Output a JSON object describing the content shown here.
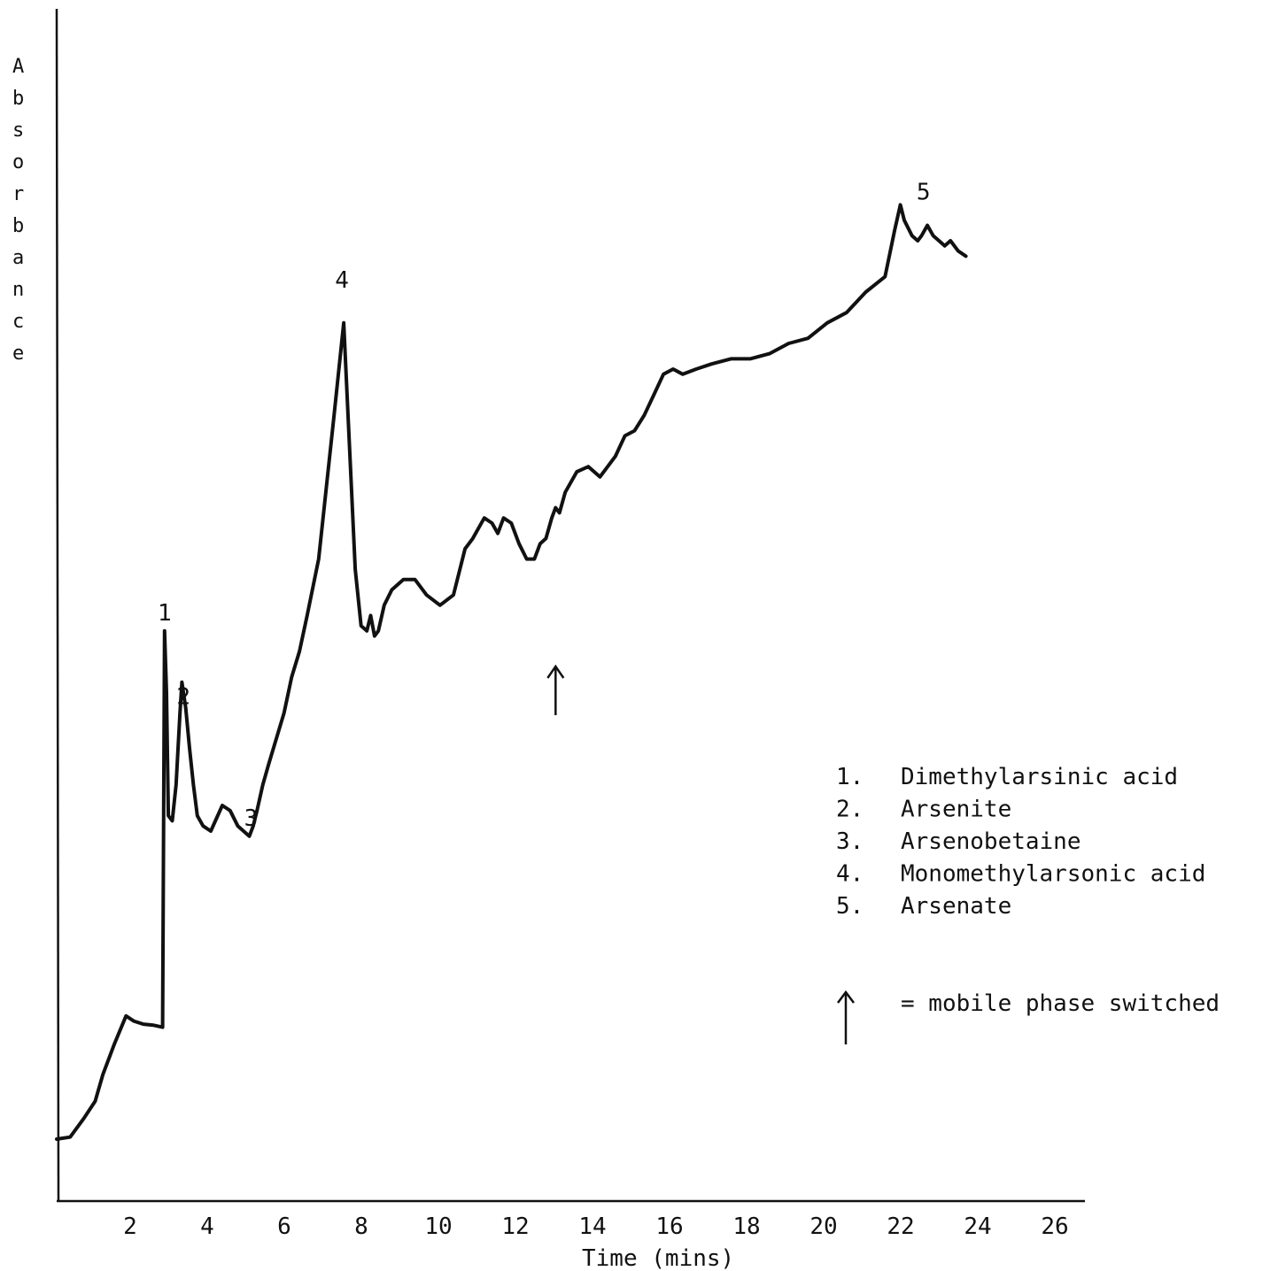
{
  "chart_data": {
    "type": "line",
    "title": "",
    "xlabel": "Time (mins)",
    "ylabel": "Absorbance",
    "xlim": [
      0,
      26.5
    ],
    "ylim": [
      0,
      100
    ],
    "x_ticks": [
      "2",
      "4",
      "6",
      "8",
      "10",
      "12",
      "14",
      "16",
      "18",
      "20",
      "22",
      "24",
      "26"
    ],
    "x_tick_values": [
      2,
      4,
      6,
      8,
      10,
      12,
      14,
      16,
      18,
      20,
      22,
      24,
      26
    ],
    "y_ticks_shown": false,
    "grid": false,
    "series": [
      {
        "x": [
          0.0,
          0.35,
          0.7,
          1.0,
          1.2,
          1.5,
          1.8,
          2.0,
          2.25,
          2.5,
          2.75,
          2.8,
          2.85,
          2.9,
          3.0,
          3.1,
          3.2,
          3.25,
          3.35,
          3.45,
          3.55,
          3.65,
          3.8,
          4.0,
          4.3,
          4.5,
          4.7,
          4.85,
          5.0,
          5.1,
          5.2,
          5.35,
          5.5,
          5.7,
          5.9,
          6.1,
          6.3,
          6.5,
          6.8,
          7.0,
          7.2,
          7.45,
          7.6,
          7.75,
          7.9,
          8.05,
          8.15,
          8.25,
          8.35,
          8.5,
          8.7,
          9.0,
          9.3,
          9.6,
          9.95,
          10.3,
          10.6,
          10.8,
          11.1,
          11.3,
          11.45,
          11.6,
          11.8,
          12.0,
          12.2,
          12.4,
          12.55,
          12.7,
          12.85,
          12.95,
          13.05,
          13.2,
          13.5,
          13.8,
          14.1,
          14.3,
          14.5,
          14.75,
          15.0,
          15.25,
          15.5,
          15.75,
          16.0,
          16.25,
          16.6,
          17.0,
          17.5,
          18.0,
          18.5,
          19.0,
          19.5,
          20.0,
          20.5,
          21.0,
          21.5,
          21.75,
          21.9,
          22.0,
          22.2,
          22.35,
          22.45,
          22.6,
          22.75,
          22.9,
          23.05,
          23.2,
          23.4,
          23.6
        ],
        "y": [
          5.5,
          5.7,
          7.5,
          9.2,
          11.8,
          14.8,
          17.5,
          17.0,
          16.7,
          16.6,
          16.4,
          55.0,
          49.0,
          37.0,
          36.5,
          40.0,
          47.0,
          50.0,
          47.5,
          43.5,
          40.0,
          37.0,
          36.0,
          35.5,
          38.0,
          37.5,
          36.0,
          35.5,
          35.0,
          36.0,
          37.5,
          40.0,
          42.0,
          44.5,
          47.0,
          50.5,
          53.0,
          56.5,
          62.0,
          69.0,
          76.0,
          85.0,
          73.0,
          61.0,
          55.5,
          55.0,
          56.5,
          54.5,
          55.0,
          57.5,
          59.0,
          60.0,
          60.0,
          58.5,
          57.5,
          58.5,
          63.0,
          64.0,
          66.0,
          65.5,
          64.5,
          66.0,
          65.5,
          63.5,
          62.0,
          62.0,
          63.5,
          64.0,
          66.0,
          67.0,
          66.5,
          68.5,
          70.5,
          71.0,
          70.0,
          71.0,
          72.0,
          74.0,
          74.5,
          76.0,
          78.0,
          80.0,
          80.5,
          80.0,
          80.5,
          81.0,
          81.5,
          81.5,
          82.0,
          83.0,
          83.5,
          85.0,
          86.0,
          88.0,
          89.5,
          94.0,
          96.5,
          95.0,
          93.5,
          93.0,
          93.5,
          94.5,
          93.5,
          93.0,
          92.5,
          93.0,
          92.0,
          91.5
        ]
      }
    ],
    "peak_labels": [
      {
        "label": "1",
        "x": 2.8,
        "y": 55.0
      },
      {
        "label": "2",
        "x": 3.2,
        "y": 47.0
      },
      {
        "label": "3",
        "x": 5.0,
        "y": 35.0
      },
      {
        "label": "4",
        "x": 7.45,
        "y": 85.0
      },
      {
        "label": "5",
        "x": 21.9,
        "y": 96.5
      }
    ],
    "annotations": [
      {
        "type": "arrow",
        "x": 12.95,
        "meaning": "mobile phase switched"
      }
    ],
    "legend": {
      "placement": "right",
      "items": [
        {
          "num": "1.",
          "text": "Dimethylarsinic acid"
        },
        {
          "num": "2.",
          "text": "Arsenite"
        },
        {
          "num": "3.",
          "text": "Arsenobetaine"
        },
        {
          "num": "4.",
          "text": "Monomethylarsonic acid"
        },
        {
          "num": "5.",
          "text": "Arsenate"
        }
      ],
      "arrow_text": "= mobile phase switched"
    }
  }
}
